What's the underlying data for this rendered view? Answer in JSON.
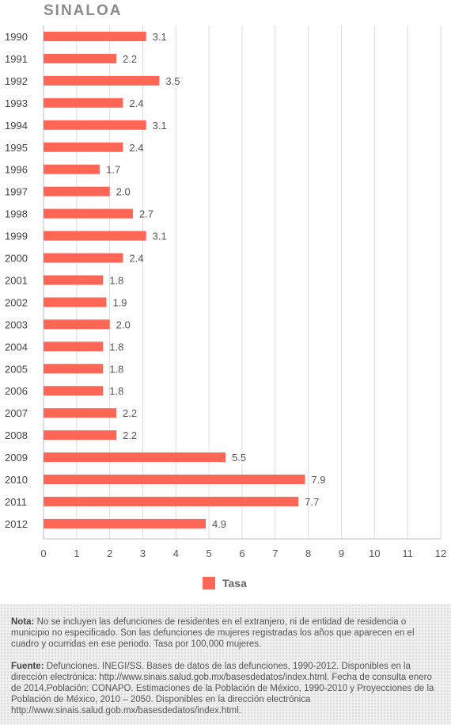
{
  "title": "SINALOA",
  "chart_data": {
    "type": "bar",
    "orientation": "horizontal",
    "title": "SINALOA",
    "categories": [
      "1990",
      "1991",
      "1992",
      "1993",
      "1994",
      "1995",
      "1996",
      "1997",
      "1998",
      "1999",
      "2000",
      "2001",
      "2002",
      "2003",
      "2004",
      "2005",
      "2006",
      "2007",
      "2008",
      "2009",
      "2010",
      "2011",
      "2012"
    ],
    "series": [
      {
        "name": "Tasa",
        "values": [
          3.1,
          2.2,
          3.5,
          2.4,
          3.1,
          2.4,
          1.7,
          2.0,
          2.7,
          3.1,
          2.4,
          1.8,
          1.9,
          2.0,
          1.8,
          1.8,
          1.8,
          2.2,
          2.2,
          5.5,
          7.9,
          7.7,
          4.9
        ],
        "labels": [
          "3.1",
          "2.2",
          "3.5",
          "2.4",
          "3.1",
          "2.4",
          "1.7",
          "2.0",
          "2.7",
          "3.1",
          "2.4",
          "1.8",
          "1.9",
          "2.0",
          "1.8",
          "1.8",
          "1.8",
          "2.2",
          "2.2",
          "5.5",
          "7.9",
          "7.7",
          "4.9"
        ]
      }
    ],
    "xlim": [
      0,
      12
    ],
    "xticks": [
      "0",
      "1",
      "2",
      "3",
      "4",
      "5",
      "6",
      "7",
      "8",
      "9",
      "10",
      "11",
      "12"
    ],
    "grid": "vertical",
    "legend": "bottom",
    "bar_color": "#ff6655"
  },
  "legend": {
    "label": "Tasa"
  },
  "notes": {
    "nota_label": "Nota:",
    "nota_text": " No se incluyen las defunciones de residentes en el extranjero, ni de entidad de residencia o municipio no especificado. Son las defunciones de mujeres registradas los años que aparecen en el cuadro y ocurridas en ese periodo. Tasa por 100,000 mujeres.",
    "fuente_label": "Fuente:",
    "fuente_text": " Defunciones. INEGI/SS. Bases de datos de las defunciones, 1990-2012. Disponibles en la dirección electrónica: http://www.sinais.salud.gob.mx/basesdedatos/index.html. Fecha de consulta enero de 2014.Población: CONAPO. Estimaciones de la Población de México, 1990-2010 y Proyecciones de la Población de México, 2010 – 2050. Disponibles en la dirección electrónica http://www.sinais.salud.gob.mx/basesdedatos/index.html."
  }
}
